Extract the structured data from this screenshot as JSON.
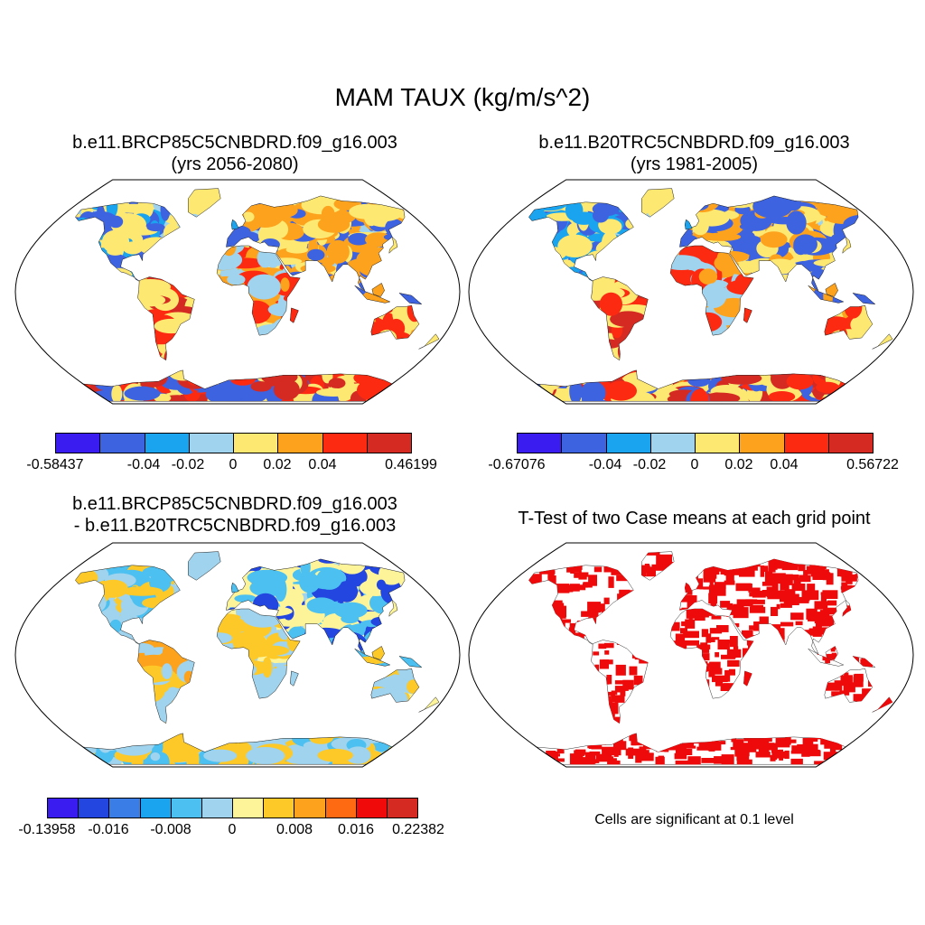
{
  "figure": {
    "main_title": "MAM TAUX (kg/m/s^2)",
    "significance_note": "Cells are significant at 0.1 level"
  },
  "panels": [
    {
      "title_line1": "b.e11.BRCP85C5CNBDRD.f09_g16.003",
      "title_line2": "(yrs 2056-2080)",
      "colors": [
        "#3a1cf0",
        "#3e63e0",
        "#1aa3ee",
        "#9fd3ee",
        "#fde872",
        "#fda21c",
        "#fd2a12",
        "#d42a22"
      ],
      "labels": [
        "-0.58437",
        "-0.04",
        "-0.02",
        "0",
        "0.02",
        "0.04",
        "0.46199"
      ]
    },
    {
      "title_line1": "b.e11.B20TRC5CNBDRD.f09_g16.003",
      "title_line2": "(yrs 1981-2005)",
      "colors": [
        "#3a1cf0",
        "#3e63e0",
        "#1aa3ee",
        "#9fd3ee",
        "#fde872",
        "#fda21c",
        "#fd2a12",
        "#d42a22"
      ],
      "labels": [
        "-0.67076",
        "-0.04",
        "-0.02",
        "0",
        "0.02",
        "0.04",
        "0.56722"
      ]
    },
    {
      "title_line1": "b.e11.BRCP85C5CNBDRD.f09_g16.003",
      "title_line2": "- b.e11.B20TRC5CNBDRD.f09_g16.003",
      "colors": [
        "#3a1cf0",
        "#2446e0",
        "#3a7de6",
        "#1aa3ee",
        "#4cc0f0",
        "#9fd3ee",
        "#fdf49a",
        "#fdc928",
        "#fda21c",
        "#fd6a12",
        "#f00a0a",
        "#d42a22"
      ],
      "labels": [
        "-0.13958",
        "-0.016",
        "-0.008",
        "0",
        "0.008",
        "0.016",
        "0.22382"
      ]
    },
    {
      "title_line1": "T-Test of two Case means at each grid point",
      "colors": [
        "#ee0a0a"
      ]
    }
  ]
}
